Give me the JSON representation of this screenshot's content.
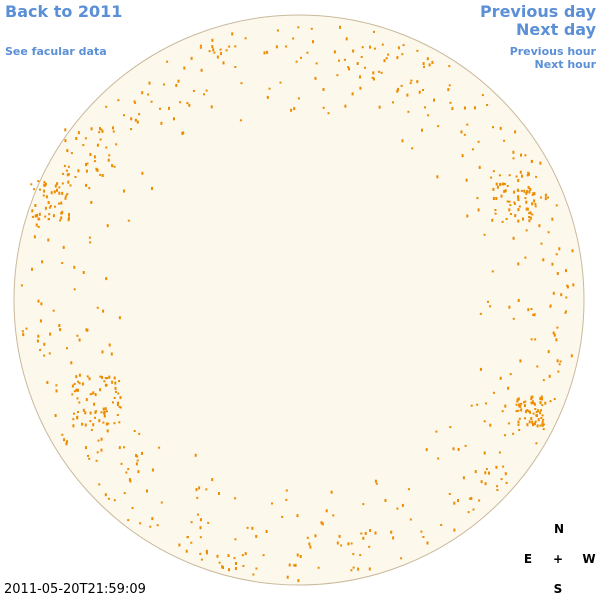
{
  "nav": {
    "back": "Back to 2011",
    "facular": "See facular data",
    "previous_day": "Previous day",
    "next_day": "Next day",
    "previous_hour": "Previous hour",
    "next_hour": "Next hour"
  },
  "compass": {
    "north": "N",
    "east": "E",
    "center": "+",
    "west": "W",
    "south": "S"
  },
  "timestamp": "2011-05-20T21:59:09"
}
